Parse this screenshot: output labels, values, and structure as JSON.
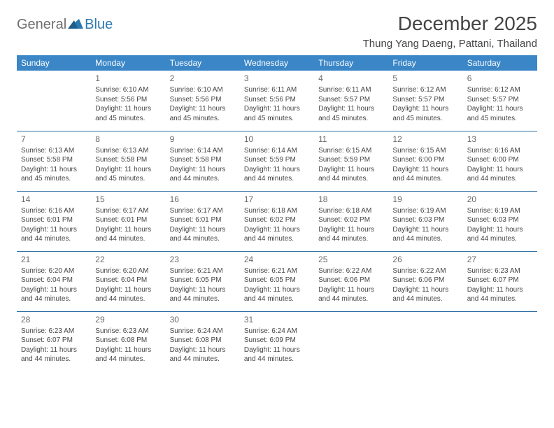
{
  "brand": {
    "general": "General",
    "blue": "Blue"
  },
  "title": "December 2025",
  "location": "Thung Yang Daeng, Pattani, Thailand",
  "colors": {
    "header_bg": "#3b86c6",
    "header_text": "#ffffff",
    "row_border": "#2f6fa3",
    "text": "#444444",
    "logo_general": "#6e6e6e",
    "logo_blue": "#2a7ab0"
  },
  "typography": {
    "title_fontsize": 28,
    "location_fontsize": 15,
    "dayheader_fontsize": 12,
    "cell_fontsize": 10
  },
  "day_headers": [
    "Sunday",
    "Monday",
    "Tuesday",
    "Wednesday",
    "Thursday",
    "Friday",
    "Saturday"
  ],
  "weeks": [
    [
      {
        "day": "",
        "sunrise": "",
        "sunset": "",
        "daylight": ""
      },
      {
        "day": "1",
        "sunrise": "Sunrise: 6:10 AM",
        "sunset": "Sunset: 5:56 PM",
        "daylight": "Daylight: 11 hours and 45 minutes."
      },
      {
        "day": "2",
        "sunrise": "Sunrise: 6:10 AM",
        "sunset": "Sunset: 5:56 PM",
        "daylight": "Daylight: 11 hours and 45 minutes."
      },
      {
        "day": "3",
        "sunrise": "Sunrise: 6:11 AM",
        "sunset": "Sunset: 5:56 PM",
        "daylight": "Daylight: 11 hours and 45 minutes."
      },
      {
        "day": "4",
        "sunrise": "Sunrise: 6:11 AM",
        "sunset": "Sunset: 5:57 PM",
        "daylight": "Daylight: 11 hours and 45 minutes."
      },
      {
        "day": "5",
        "sunrise": "Sunrise: 6:12 AM",
        "sunset": "Sunset: 5:57 PM",
        "daylight": "Daylight: 11 hours and 45 minutes."
      },
      {
        "day": "6",
        "sunrise": "Sunrise: 6:12 AM",
        "sunset": "Sunset: 5:57 PM",
        "daylight": "Daylight: 11 hours and 45 minutes."
      }
    ],
    [
      {
        "day": "7",
        "sunrise": "Sunrise: 6:13 AM",
        "sunset": "Sunset: 5:58 PM",
        "daylight": "Daylight: 11 hours and 45 minutes."
      },
      {
        "day": "8",
        "sunrise": "Sunrise: 6:13 AM",
        "sunset": "Sunset: 5:58 PM",
        "daylight": "Daylight: 11 hours and 45 minutes."
      },
      {
        "day": "9",
        "sunrise": "Sunrise: 6:14 AM",
        "sunset": "Sunset: 5:58 PM",
        "daylight": "Daylight: 11 hours and 44 minutes."
      },
      {
        "day": "10",
        "sunrise": "Sunrise: 6:14 AM",
        "sunset": "Sunset: 5:59 PM",
        "daylight": "Daylight: 11 hours and 44 minutes."
      },
      {
        "day": "11",
        "sunrise": "Sunrise: 6:15 AM",
        "sunset": "Sunset: 5:59 PM",
        "daylight": "Daylight: 11 hours and 44 minutes."
      },
      {
        "day": "12",
        "sunrise": "Sunrise: 6:15 AM",
        "sunset": "Sunset: 6:00 PM",
        "daylight": "Daylight: 11 hours and 44 minutes."
      },
      {
        "day": "13",
        "sunrise": "Sunrise: 6:16 AM",
        "sunset": "Sunset: 6:00 PM",
        "daylight": "Daylight: 11 hours and 44 minutes."
      }
    ],
    [
      {
        "day": "14",
        "sunrise": "Sunrise: 6:16 AM",
        "sunset": "Sunset: 6:01 PM",
        "daylight": "Daylight: 11 hours and 44 minutes."
      },
      {
        "day": "15",
        "sunrise": "Sunrise: 6:17 AM",
        "sunset": "Sunset: 6:01 PM",
        "daylight": "Daylight: 11 hours and 44 minutes."
      },
      {
        "day": "16",
        "sunrise": "Sunrise: 6:17 AM",
        "sunset": "Sunset: 6:01 PM",
        "daylight": "Daylight: 11 hours and 44 minutes."
      },
      {
        "day": "17",
        "sunrise": "Sunrise: 6:18 AM",
        "sunset": "Sunset: 6:02 PM",
        "daylight": "Daylight: 11 hours and 44 minutes."
      },
      {
        "day": "18",
        "sunrise": "Sunrise: 6:18 AM",
        "sunset": "Sunset: 6:02 PM",
        "daylight": "Daylight: 11 hours and 44 minutes."
      },
      {
        "day": "19",
        "sunrise": "Sunrise: 6:19 AM",
        "sunset": "Sunset: 6:03 PM",
        "daylight": "Daylight: 11 hours and 44 minutes."
      },
      {
        "day": "20",
        "sunrise": "Sunrise: 6:19 AM",
        "sunset": "Sunset: 6:03 PM",
        "daylight": "Daylight: 11 hours and 44 minutes."
      }
    ],
    [
      {
        "day": "21",
        "sunrise": "Sunrise: 6:20 AM",
        "sunset": "Sunset: 6:04 PM",
        "daylight": "Daylight: 11 hours and 44 minutes."
      },
      {
        "day": "22",
        "sunrise": "Sunrise: 6:20 AM",
        "sunset": "Sunset: 6:04 PM",
        "daylight": "Daylight: 11 hours and 44 minutes."
      },
      {
        "day": "23",
        "sunrise": "Sunrise: 6:21 AM",
        "sunset": "Sunset: 6:05 PM",
        "daylight": "Daylight: 11 hours and 44 minutes."
      },
      {
        "day": "24",
        "sunrise": "Sunrise: 6:21 AM",
        "sunset": "Sunset: 6:05 PM",
        "daylight": "Daylight: 11 hours and 44 minutes."
      },
      {
        "day": "25",
        "sunrise": "Sunrise: 6:22 AM",
        "sunset": "Sunset: 6:06 PM",
        "daylight": "Daylight: 11 hours and 44 minutes."
      },
      {
        "day": "26",
        "sunrise": "Sunrise: 6:22 AM",
        "sunset": "Sunset: 6:06 PM",
        "daylight": "Daylight: 11 hours and 44 minutes."
      },
      {
        "day": "27",
        "sunrise": "Sunrise: 6:23 AM",
        "sunset": "Sunset: 6:07 PM",
        "daylight": "Daylight: 11 hours and 44 minutes."
      }
    ],
    [
      {
        "day": "28",
        "sunrise": "Sunrise: 6:23 AM",
        "sunset": "Sunset: 6:07 PM",
        "daylight": "Daylight: 11 hours and 44 minutes."
      },
      {
        "day": "29",
        "sunrise": "Sunrise: 6:23 AM",
        "sunset": "Sunset: 6:08 PM",
        "daylight": "Daylight: 11 hours and 44 minutes."
      },
      {
        "day": "30",
        "sunrise": "Sunrise: 6:24 AM",
        "sunset": "Sunset: 6:08 PM",
        "daylight": "Daylight: 11 hours and 44 minutes."
      },
      {
        "day": "31",
        "sunrise": "Sunrise: 6:24 AM",
        "sunset": "Sunset: 6:09 PM",
        "daylight": "Daylight: 11 hours and 44 minutes."
      },
      {
        "day": "",
        "sunrise": "",
        "sunset": "",
        "daylight": ""
      },
      {
        "day": "",
        "sunrise": "",
        "sunset": "",
        "daylight": ""
      },
      {
        "day": "",
        "sunrise": "",
        "sunset": "",
        "daylight": ""
      }
    ]
  ]
}
